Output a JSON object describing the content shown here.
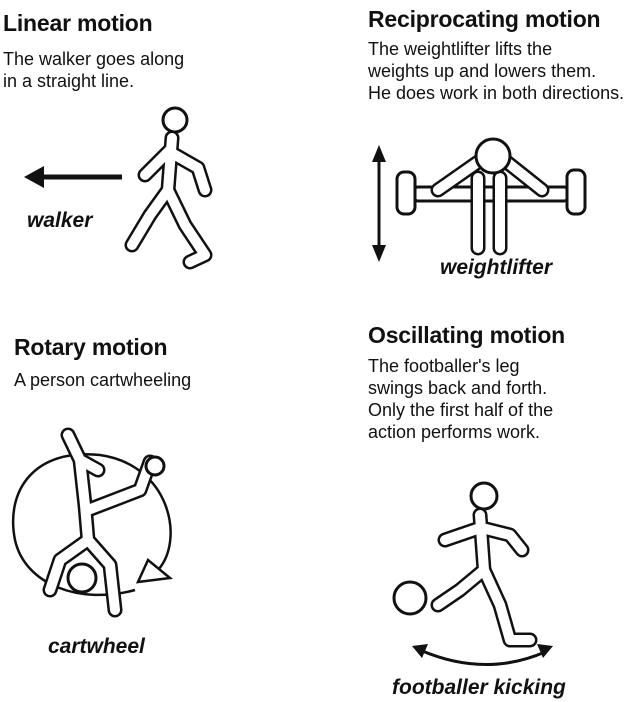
{
  "panels": [
    {
      "title": "Linear motion",
      "description": [
        "The walker goes along",
        "in a straight line."
      ],
      "caption": "walker",
      "icon": "walker-figure"
    },
    {
      "title": "Reciprocating motion",
      "description": [
        "The weightlifter lifts the",
        "weights up and lowers them.",
        "He does work in both directions."
      ],
      "caption": "weightlifter",
      "icon": "weightlifter-figure"
    },
    {
      "title": "Rotary motion",
      "description": [
        "A person cartwheeling"
      ],
      "caption": "cartwheel",
      "icon": "cartwheel-figure"
    },
    {
      "title": "Oscillating motion",
      "description": [
        "The footballer's leg",
        "swings back and forth.",
        "Only the first half of the",
        "action performs work."
      ],
      "caption": "footballer kicking",
      "icon": "footballer-figure"
    }
  ],
  "colors": {
    "ink": "#111111",
    "background": "#ffffff"
  }
}
